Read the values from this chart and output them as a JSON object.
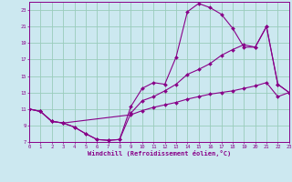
{
  "xlabel": "Windchill (Refroidissement éolien,°C)",
  "background_color": "#cce8f0",
  "grid_color": "#99ccbb",
  "line_color": "#880088",
  "xlim": [
    0,
    23
  ],
  "ylim": [
    7,
    24
  ],
  "xticks": [
    0,
    1,
    2,
    3,
    4,
    5,
    6,
    7,
    8,
    9,
    10,
    11,
    12,
    13,
    14,
    15,
    16,
    17,
    18,
    19,
    20,
    21,
    22,
    23
  ],
  "yticks": [
    7,
    9,
    11,
    13,
    15,
    17,
    19,
    21,
    23
  ],
  "series": [
    {
      "x": [
        0,
        1,
        2,
        3,
        4,
        5,
        6,
        7,
        8,
        9,
        10,
        11,
        12,
        13,
        14,
        15,
        16,
        17,
        18,
        19,
        20,
        21,
        22,
        23
      ],
      "y": [
        11,
        10.7,
        9.5,
        9.3,
        8.8,
        8.0,
        7.3,
        7.2,
        7.3,
        11.3,
        13.5,
        14.2,
        14.0,
        17.3,
        22.8,
        23.8,
        23.3,
        22.5,
        20.8,
        18.5,
        18.5,
        21.0,
        14.0,
        13.0
      ]
    },
    {
      "x": [
        0,
        1,
        2,
        3,
        4,
        5,
        6,
        7,
        8,
        9,
        10,
        11,
        12,
        13,
        14,
        15,
        16,
        17,
        18,
        19,
        20,
        21,
        22,
        23
      ],
      "y": [
        11,
        10.7,
        9.5,
        9.3,
        8.8,
        8.0,
        7.3,
        7.2,
        7.3,
        10.5,
        12.0,
        12.5,
        13.2,
        14.0,
        15.2,
        15.8,
        16.5,
        17.5,
        18.2,
        18.8,
        18.5,
        21.0,
        14.0,
        13.0
      ]
    },
    {
      "x": [
        0,
        1,
        2,
        3,
        9,
        10,
        11,
        12,
        13,
        14,
        15,
        16,
        17,
        18,
        19,
        20,
        21,
        22,
        23
      ],
      "y": [
        11,
        10.7,
        9.5,
        9.3,
        10.3,
        10.8,
        11.2,
        11.5,
        11.8,
        12.2,
        12.5,
        12.8,
        13.0,
        13.2,
        13.5,
        13.8,
        14.2,
        12.5,
        13.0
      ]
    }
  ]
}
